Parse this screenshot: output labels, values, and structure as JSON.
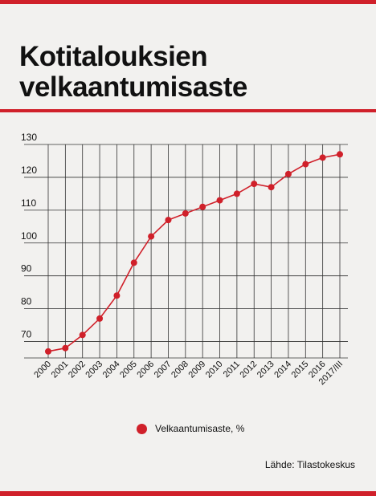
{
  "title_line1": "Kotitalouksien",
  "title_line2": "velkaantumisaste",
  "legend_label": "Velkaantumisaste, %",
  "source": "Lähde: Tilastokeskus",
  "colors": {
    "accent": "#d0202a",
    "text": "#111111",
    "grid": "#333333",
    "background": "#f2f1ef"
  },
  "chart_data": {
    "type": "line",
    "categories": [
      "2000",
      "2001",
      "2002",
      "2003",
      "2004",
      "2005",
      "2006",
      "2007",
      "2008",
      "2009",
      "2010",
      "2011",
      "2012",
      "2013",
      "2014",
      "2015",
      "2016",
      "2017/III"
    ],
    "series": [
      {
        "name": "Velkaantumisaste, %",
        "values": [
          67,
          68,
          72,
          77,
          84,
          94,
          102,
          107,
          109,
          111,
          113,
          115,
          118,
          117,
          121,
          124,
          126,
          127
        ]
      }
    ],
    "yticks": [
      70,
      80,
      90,
      100,
      110,
      120,
      130
    ],
    "ylim": [
      65,
      130
    ],
    "grid": true,
    "legend": "bottom",
    "xlabel": "",
    "ylabel": ""
  }
}
